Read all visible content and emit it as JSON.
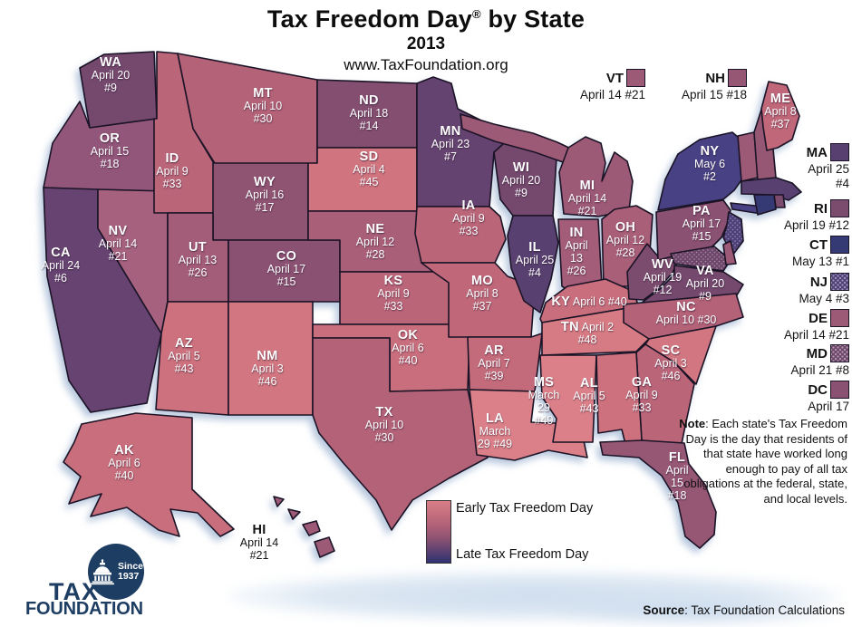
{
  "header": {
    "title_main": "Tax Freedom Day",
    "title_reg": "®",
    "title_suffix": " by State",
    "year": "2013",
    "website": "www.TaxFoundation.org"
  },
  "note": {
    "label": "Note",
    "text": ": Each state's Tax Freedom Day is the day that residents of that state have worked long enough to pay of all tax obligations at the federal, state, and local levels."
  },
  "source": {
    "label": "Source",
    "text": ": Tax Foundation Calculations"
  },
  "legend": {
    "early_label": "Early Tax Freedom Day",
    "late_label": "Late Tax Freedom Day",
    "early_color": "#d97e87",
    "mid_color": "#8a5172",
    "late_color": "#2e3272"
  },
  "logo": {
    "tax": "TAX",
    "foundation": "FOUNDATION",
    "since_line1": "Since",
    "since_line2": "1937"
  },
  "states": [
    {
      "abbr": "WA",
      "date": "April 20",
      "rank": "#9",
      "color": "#75496e",
      "lines": [
        "WA",
        "April 20",
        "#9"
      ]
    },
    {
      "abbr": "OR",
      "date": "April 15",
      "rank": "#18",
      "color": "#92567a",
      "lines": [
        "OR",
        "April 15",
        "#18"
      ]
    },
    {
      "abbr": "CA",
      "date": "April 24",
      "rank": "#6",
      "color": "#674371",
      "lines": [
        "CA",
        "April 24",
        "#6"
      ]
    },
    {
      "abbr": "NV",
      "date": "April 14",
      "rank": "#21",
      "color": "#a5617e",
      "lines": [
        "NV",
        "April 14",
        "#21"
      ]
    },
    {
      "abbr": "ID",
      "date": "April 9",
      "rank": "#33",
      "color": "#bb6579",
      "lines": [
        "ID",
        "April 9",
        "#33"
      ]
    },
    {
      "abbr": "MT",
      "date": "April 10",
      "rank": "#30",
      "color": "#b36278",
      "lines": [
        "MT",
        "April 10",
        "#30"
      ]
    },
    {
      "abbr": "WY",
      "date": "April 16",
      "rank": "#17",
      "color": "#905473",
      "lines": [
        "WY",
        "April 16",
        "#17"
      ]
    },
    {
      "abbr": "UT",
      "date": "April 13",
      "rank": "#26",
      "color": "#a35d78",
      "lines": [
        "UT",
        "April 13",
        "#26"
      ]
    },
    {
      "abbr": "CO",
      "date": "April 17",
      "rank": "#15",
      "color": "#8a5172",
      "lines": [
        "CO",
        "April 17",
        "#15"
      ]
    },
    {
      "abbr": "AZ",
      "date": "April 5",
      "rank": "#43",
      "color": "#cc717d",
      "lines": [
        "AZ",
        "April 5",
        "#43"
      ]
    },
    {
      "abbr": "NM",
      "date": "April 3",
      "rank": "#46",
      "color": "#d27781",
      "lines": [
        "NM",
        "April 3",
        "#46"
      ]
    },
    {
      "abbr": "ND",
      "date": "April 18",
      "rank": "#14",
      "color": "#834e70",
      "lines": [
        "ND",
        "April 18",
        "#14"
      ]
    },
    {
      "abbr": "SD",
      "date": "April 4",
      "rank": "#45",
      "color": "#d0747f",
      "lines": [
        "SD",
        "April 4",
        "#45"
      ]
    },
    {
      "abbr": "NE",
      "date": "April 12",
      "rank": "#28",
      "color": "#aa5f78",
      "lines": [
        "NE",
        "April 12",
        "#28"
      ]
    },
    {
      "abbr": "KS",
      "date": "April 9",
      "rank": "#33",
      "color": "#bb6579",
      "lines": [
        "KS",
        "April 9",
        "#33"
      ]
    },
    {
      "abbr": "OK",
      "date": "April 6",
      "rank": "#40",
      "color": "#c86e7c",
      "lines": [
        "OK",
        "April 6",
        "#40"
      ]
    },
    {
      "abbr": "TX",
      "date": "April 10",
      "rank": "#30",
      "color": "#b36278",
      "lines": [
        "TX",
        "April 10",
        "#30"
      ]
    },
    {
      "abbr": "MN",
      "date": "April 23",
      "rank": "#7",
      "color": "#654370",
      "lines": [
        "MN",
        "April 23",
        "#7"
      ]
    },
    {
      "abbr": "IA",
      "date": "April 9",
      "rank": "#33",
      "color": "#bb6579",
      "lines": [
        "IA",
        "April 9",
        "#33"
      ]
    },
    {
      "abbr": "MO",
      "date": "April 8",
      "rank": "#37",
      "color": "#c0687a",
      "lines": [
        "MO",
        "April 8",
        "#37"
      ]
    },
    {
      "abbr": "AR",
      "date": "April 7",
      "rank": "#39",
      "color": "#c46b7b",
      "lines": [
        "AR",
        "April 7",
        "#39"
      ]
    },
    {
      "abbr": "LA",
      "date": "March 29",
      "rank": "#49",
      "color": "#db8088",
      "lines": [
        "LA",
        "March",
        "29 #49"
      ]
    },
    {
      "abbr": "MS",
      "date": "March 29",
      "rank": "#49",
      "color": "#db8088",
      "lines": [
        "MS",
        "March",
        "29",
        "#49"
      ]
    },
    {
      "abbr": "WI",
      "date": "April 20",
      "rank": "#9",
      "color": "#75496e",
      "lines": [
        "WI",
        "April 20",
        "#9"
      ]
    },
    {
      "abbr": "IL",
      "date": "April 25",
      "rank": "#4",
      "color": "#584070",
      "lines": [
        "IL",
        "April 25",
        "#4"
      ]
    },
    {
      "abbr": "MI",
      "date": "April 14",
      "rank": "#21",
      "color": "#9d5a77",
      "lines": [
        "MI",
        "April 14",
        "#21"
      ]
    },
    {
      "abbr": "IN",
      "date": "April 13",
      "rank": "#26",
      "color": "#a35d78",
      "lines": [
        "IN",
        "April",
        "13",
        "#26"
      ]
    },
    {
      "abbr": "OH",
      "date": "April 12",
      "rank": "#28",
      "color": "#aa5f78",
      "lines": [
        "OH",
        "April 12",
        "#28"
      ]
    },
    {
      "abbr": "KY",
      "date": "April 6",
      "rank": "#40",
      "color": "#c86e7c",
      "lines": [
        "KY April 6 #40"
      ]
    },
    {
      "abbr": "TN",
      "date": "April 2",
      "rank": "#48",
      "color": "#d67b84",
      "lines": [
        "TN April 2",
        "#48"
      ]
    },
    {
      "abbr": "WV",
      "date": "April 19",
      "rank": "#12",
      "color": "#7c4c6f",
      "lines": [
        "WV",
        "April 19",
        "#12"
      ]
    },
    {
      "abbr": "VA",
      "date": "April 20",
      "rank": "#9",
      "color": "#75496e",
      "lines": [
        "VA",
        "April 20",
        "#9"
      ]
    },
    {
      "abbr": "NC",
      "date": "April 10",
      "rank": "#30",
      "color": "#b36278",
      "lines": [
        "NC",
        "April 10 #30"
      ]
    },
    {
      "abbr": "SC",
      "date": "April 3",
      "rank": "#46",
      "color": "#d27781",
      "lines": [
        "SC",
        "April 3",
        "#46"
      ]
    },
    {
      "abbr": "GA",
      "date": "April 9",
      "rank": "#33",
      "color": "#bb6579",
      "lines": [
        "GA",
        "April 9",
        "#33"
      ]
    },
    {
      "abbr": "AL",
      "date": "April 5",
      "rank": "#43",
      "color": "#cc717d",
      "lines": [
        "AL",
        "April 5",
        "#43"
      ]
    },
    {
      "abbr": "FL",
      "date": "April 15",
      "rank": "#18",
      "color": "#965775",
      "lines": [
        "FL",
        "April",
        "15",
        "#18"
      ]
    },
    {
      "abbr": "NY",
      "date": "May 6",
      "rank": "#2",
      "color": "#484285",
      "lines": [
        "NY",
        "May 6",
        "#2"
      ]
    },
    {
      "abbr": "PA",
      "date": "April 17",
      "rank": "#15",
      "color": "#8a5172",
      "lines": [
        "PA",
        "April 17",
        "#15"
      ]
    },
    {
      "abbr": "ME",
      "date": "April 8",
      "rank": "#37",
      "color": "#c0687a",
      "lines": [
        "ME",
        "April 8",
        "#37"
      ]
    },
    {
      "abbr": "AK",
      "date": "April 6",
      "rank": "#40",
      "color": "#c86e7c",
      "lines": [
        "AK",
        "April 6",
        "#40"
      ]
    },
    {
      "abbr": "HI",
      "date": "April 14",
      "rank": "#21",
      "color": "#9d5a77",
      "dark": true,
      "lines": [
        "HI",
        "April 14",
        "#21"
      ]
    },
    {
      "abbr": "VT",
      "date": "April 14",
      "rank": "#21",
      "color": "#9d5a77",
      "callout": "top",
      "lines": [
        "VT",
        "April 14 #21"
      ]
    },
    {
      "abbr": "NH",
      "date": "April 15",
      "rank": "#18",
      "color": "#965775",
      "callout": "top",
      "lines": [
        "NH",
        "April 15 #18"
      ]
    },
    {
      "abbr": "MA",
      "date": "April 25",
      "rank": "#4",
      "color": "#584070",
      "callout": "right",
      "lines": [
        "MA",
        "April 25",
        "#4"
      ]
    },
    {
      "abbr": "RI",
      "date": "April 19",
      "rank": "#12",
      "color": "#7c4c6f",
      "callout": "right",
      "lines": [
        "RI",
        "April 19 #12"
      ]
    },
    {
      "abbr": "CT",
      "date": "May 13",
      "rank": "#1",
      "color": "#363a74",
      "callout": "right",
      "lines": [
        "CT",
        "May 13 #1"
      ]
    },
    {
      "abbr": "NJ",
      "date": "May 4",
      "rank": "#3",
      "color": "#4e4078",
      "pattern": "dots",
      "callout": "right",
      "lines": [
        "NJ",
        "May 4 #3"
      ]
    },
    {
      "abbr": "DE",
      "date": "April 14",
      "rank": "#21",
      "color": "#9d5a77",
      "callout": "right",
      "lines": [
        "DE",
        "April 14 #21"
      ]
    },
    {
      "abbr": "MD",
      "date": "April 21",
      "rank": "#8",
      "color": "#6f466b",
      "pattern": "dots",
      "callout": "right",
      "lines": [
        "MD",
        "April 21 #8"
      ]
    },
    {
      "abbr": "DC",
      "date": "April 17",
      "rank": "",
      "color": "#8a5172",
      "callout": "right",
      "lines": [
        "DC",
        "April 17"
      ]
    }
  ]
}
